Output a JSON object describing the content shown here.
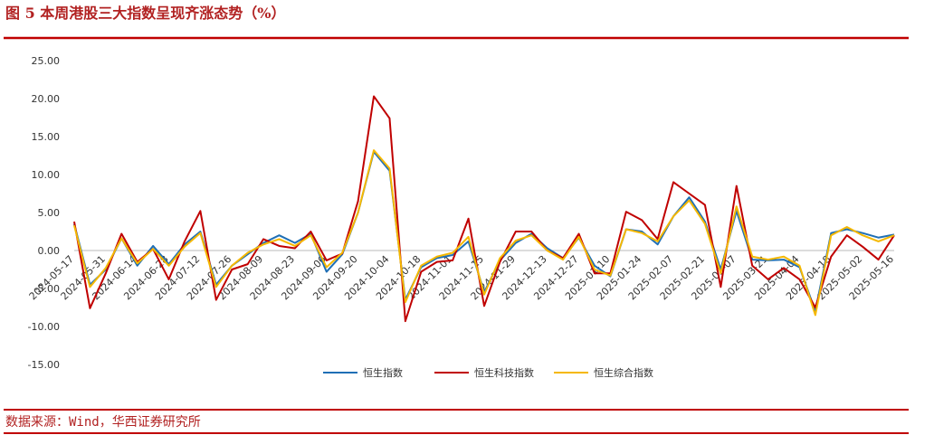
{
  "chart_data": {
    "type": "line",
    "title": "图 5 本周港股三大指数呈现齐涨态势（%）",
    "source": "数据来源：Wind，华西证券研究所",
    "categories": [
      "2024-05-17",
      null,
      "2024-05-31",
      null,
      "2024-06-14",
      null,
      "2024-06-28",
      null,
      "2024-07-12",
      null,
      "2024-07-26",
      null,
      "2024-08-09",
      null,
      "2024-08-23",
      null,
      "2024-09-06",
      null,
      "2024-09-20",
      null,
      "2024-10-04",
      null,
      "2024-10-18",
      null,
      "2024-11-01",
      null,
      "2024-11-15",
      null,
      "2024-11-29",
      null,
      "2024-12-13",
      null,
      "2024-12-27",
      null,
      "2025-01-10",
      null,
      "2025-01-24",
      null,
      "2025-02-07",
      null,
      "2025-02-21",
      null,
      "2025-03-07",
      null,
      "2025-03-21",
      null,
      "2025-04-04",
      null,
      "2025-04-18",
      null,
      "2025-05-02",
      null,
      "2025-05-16"
    ],
    "series": [
      {
        "name": "恒生指数",
        "color": "#1f6fb5",
        "values": [
          3.5,
          -4.5,
          -2.5,
          1.6,
          -2.0,
          0.6,
          -1.8,
          0.8,
          2.5,
          -4.5,
          -2.0,
          -0.5,
          1.0,
          2.0,
          1.0,
          2.2,
          -2.8,
          -0.5,
          5.0,
          13.0,
          10.5,
          -6.5,
          -2.2,
          -1.0,
          -0.6,
          1.2,
          -5.5,
          -1.3,
          1.0,
          2.2,
          0.3,
          -1.0,
          1.7,
          -2.0,
          -3.4,
          2.8,
          2.5,
          0.8,
          4.5,
          7.0,
          3.8,
          -2.5,
          5.2,
          -1.2,
          -1.3,
          -1.2,
          -2.2,
          -8.0,
          2.3,
          2.8,
          2.3,
          1.7,
          2.1
        ]
      },
      {
        "name": "恒生科技指数",
        "color": "#c00000",
        "values": [
          3.8,
          -7.6,
          -3.0,
          2.2,
          -1.5,
          0.2,
          -3.8,
          1.2,
          5.2,
          -6.5,
          -2.5,
          -1.8,
          1.5,
          0.6,
          0.3,
          2.5,
          -1.3,
          -0.4,
          6.5,
          20.3,
          17.4,
          -9.3,
          -2.8,
          -1.5,
          -1.3,
          4.2,
          -7.3,
          -1.5,
          2.5,
          2.5,
          0.0,
          -1.0,
          2.2,
          -3.0,
          -3.0,
          5.1,
          4.0,
          1.5,
          9.0,
          7.5,
          6.0,
          -4.8,
          8.5,
          -2.0,
          -3.8,
          -2.3,
          -3.8,
          -7.5,
          -0.8,
          2.0,
          0.5,
          -1.2,
          2.0
        ]
      },
      {
        "name": "恒生综合指数",
        "color": "#f5b800",
        "values": [
          3.3,
          -4.8,
          -2.3,
          1.6,
          -1.7,
          0.2,
          -2.0,
          0.5,
          2.3,
          -4.8,
          -2.0,
          -0.3,
          0.8,
          1.5,
          0.6,
          2.0,
          -2.2,
          -0.3,
          5.0,
          13.2,
          10.8,
          -6.8,
          -2.0,
          -0.8,
          -0.3,
          1.8,
          -5.8,
          -1.0,
          1.3,
          2.0,
          0.0,
          -1.2,
          1.8,
          -2.5,
          -3.3,
          2.8,
          2.3,
          1.2,
          4.5,
          6.6,
          3.5,
          -3.0,
          5.8,
          -0.8,
          -1.2,
          -0.8,
          -2.0,
          -8.5,
          2.0,
          3.1,
          2.0,
          1.2,
          2.0
        ]
      }
    ],
    "ylim": [
      -15,
      25
    ],
    "yticks": [
      {
        "value": -15,
        "label": "-15.00"
      },
      {
        "value": -10,
        "label": "-10.00"
      },
      {
        "value": -5,
        "label": "-5.00"
      },
      {
        "value": 0,
        "label": "0.00"
      },
      {
        "value": 5,
        "label": "5.00"
      },
      {
        "value": 10,
        "label": "10.00"
      },
      {
        "value": 15,
        "label": "15.00"
      },
      {
        "value": 20,
        "label": "20.00"
      },
      {
        "value": 25,
        "label": "25.00"
      }
    ],
    "grid": false,
    "legend": "bottom"
  }
}
